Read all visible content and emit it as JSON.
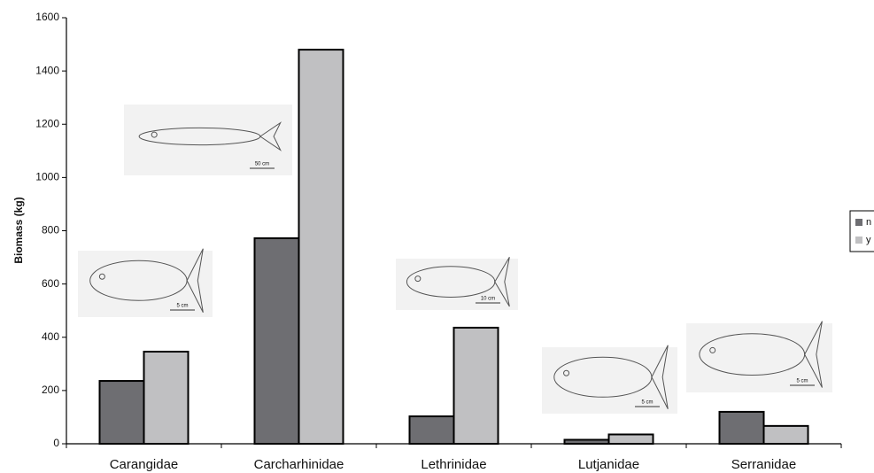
{
  "chart_data": {
    "type": "bar",
    "y_label": "Biomass (kg)",
    "categories": [
      "Carangidae",
      "Carcharhinidae",
      "Lethrinidae",
      "Lutjanidae",
      "Serranidae"
    ],
    "series": [
      {
        "name": "n",
        "color": "#6e6e72",
        "values": [
          236,
          772,
          103,
          15,
          120
        ]
      },
      {
        "name": "y",
        "color": "#c0c0c2",
        "values": [
          346,
          1480,
          436,
          35,
          67
        ]
      }
    ],
    "ylim": [
      0,
      1600
    ],
    "yticks": [
      0,
      200,
      400,
      600,
      800,
      1000,
      1200,
      1400,
      1600
    ],
    "annotations": [
      "5 cm",
      "50 cm",
      "10 cm",
      "5 cm",
      "5 cm"
    ],
    "legend": "right"
  }
}
